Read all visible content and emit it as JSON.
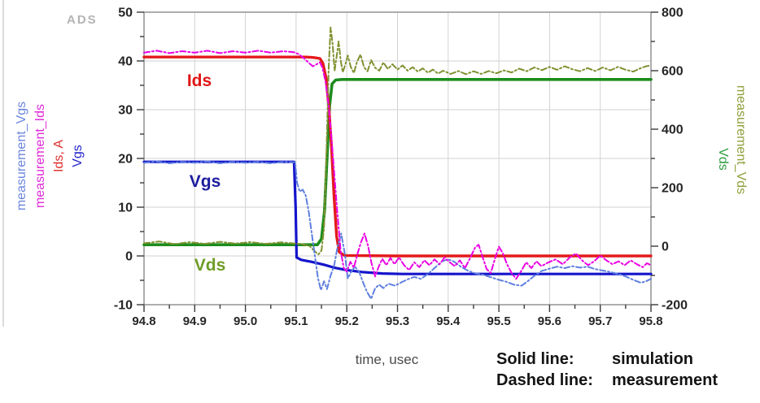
{
  "watermark": "ADS",
  "legend": {
    "solid_label": "Solid line:",
    "solid_value": "simulation",
    "dashed_label": "Dashed line:",
    "dashed_value": "measurement"
  },
  "chart_data": {
    "type": "line",
    "title": "",
    "xlabel": "time, usec",
    "grid": true,
    "x_range": [
      94.8,
      95.8
    ],
    "x_tick_labels": [
      "94.8",
      "94.9",
      "95.0",
      "95.1",
      "95.2",
      "95.3",
      "95.4",
      "95.5",
      "95.6",
      "95.7",
      "95.8"
    ],
    "left_axis": {
      "range": [
        -10,
        50
      ],
      "ticks": [
        50,
        40,
        30,
        20,
        10,
        0,
        -10
      ],
      "labels": [
        {
          "text": "measurement_Vgs",
          "color": "#6b86dd"
        },
        {
          "text": "measurement_Ids",
          "color": "#e02ad8"
        },
        {
          "text": "Ids, A",
          "color": "#e03030"
        },
        {
          "text": "Vgs",
          "color": "#2626cc"
        }
      ]
    },
    "right_axis": {
      "range": [
        -200,
        800
      ],
      "ticks": [
        800,
        600,
        400,
        200,
        0,
        -200
      ],
      "labels": [
        {
          "text": "Vds",
          "color": "#2f9e40"
        },
        {
          "text": "measurement_Vds",
          "color": "#8fa03c"
        }
      ]
    },
    "inline_labels": [
      {
        "text": "Ids",
        "color": "#e01515"
      },
      {
        "text": "Vgs",
        "color": "#1c1c9e"
      },
      {
        "text": "Vds",
        "color": "#6f9c28"
      }
    ],
    "series": [
      {
        "name": "Vds_simulation",
        "axis": "right",
        "line_style": "solid",
        "color": "#1d8c1d",
        "width": 3.6,
        "points": [
          [
            94.8,
            5
          ],
          [
            95.142,
            5
          ],
          [
            95.15,
            25
          ],
          [
            95.156,
            120
          ],
          [
            95.161,
            300
          ],
          [
            95.166,
            480
          ],
          [
            95.171,
            555
          ],
          [
            95.178,
            568
          ],
          [
            95.19,
            570
          ],
          [
            95.8,
            570
          ]
        ]
      },
      {
        "name": "Vgs_simulation",
        "axis": "left",
        "line_style": "solid",
        "color": "#1414cc",
        "width": 3.2,
        "points": [
          [
            94.8,
            19.3
          ],
          [
            95.096,
            19.3
          ],
          [
            95.099,
            10
          ],
          [
            95.101,
            -0.3
          ],
          [
            95.11,
            -0.8
          ],
          [
            95.13,
            -1.2
          ],
          [
            95.155,
            -1.8
          ],
          [
            95.175,
            -2.4
          ],
          [
            95.2,
            -2.9
          ],
          [
            95.23,
            -3.3
          ],
          [
            95.27,
            -3.6
          ],
          [
            95.31,
            -3.7
          ],
          [
            95.8,
            -3.7
          ]
        ]
      },
      {
        "name": "Ids_simulation",
        "axis": "left",
        "line_style": "solid",
        "color": "#e31a1a",
        "width": 3.4,
        "points": [
          [
            94.8,
            40.8
          ],
          [
            95.12,
            40.8
          ],
          [
            95.135,
            40.7
          ],
          [
            95.147,
            40.5
          ],
          [
            95.153,
            39.5
          ],
          [
            95.159,
            36.5
          ],
          [
            95.165,
            30
          ],
          [
            95.17,
            22
          ],
          [
            95.175,
            12
          ],
          [
            95.18,
            4
          ],
          [
            95.185,
            0.8
          ],
          [
            95.195,
            0.1
          ],
          [
            95.3,
            0
          ],
          [
            95.8,
            0
          ]
        ]
      },
      {
        "name": "Vds_measurement",
        "axis": "right",
        "line_style": "dashed",
        "color": "#7f9130",
        "width": 2,
        "points": [
          [
            94.8,
            10
          ],
          [
            94.83,
            16
          ],
          [
            94.86,
            7
          ],
          [
            94.89,
            14
          ],
          [
            94.92,
            8
          ],
          [
            94.95,
            15
          ],
          [
            94.98,
            9
          ],
          [
            95.01,
            14
          ],
          [
            95.04,
            8
          ],
          [
            95.07,
            13
          ],
          [
            95.1,
            9
          ],
          [
            95.115,
            6
          ],
          [
            95.127,
            0
          ],
          [
            95.137,
            -18
          ],
          [
            95.144,
            -28
          ],
          [
            95.15,
            -15
          ],
          [
            95.155,
            60
          ],
          [
            95.16,
            330
          ],
          [
            95.164,
            600
          ],
          [
            95.168,
            748
          ],
          [
            95.172,
            690
          ],
          [
            95.176,
            600
          ],
          [
            95.18,
            648
          ],
          [
            95.184,
            700
          ],
          [
            95.188,
            635
          ],
          [
            95.192,
            595
          ],
          [
            95.197,
            620
          ],
          [
            95.202,
            652
          ],
          [
            95.208,
            612
          ],
          [
            95.214,
            592
          ],
          [
            95.22,
            630
          ],
          [
            95.227,
            655
          ],
          [
            95.234,
            612
          ],
          [
            95.241,
            598
          ],
          [
            95.248,
            636
          ],
          [
            95.256,
            610
          ],
          [
            95.264,
            600
          ],
          [
            95.272,
            628
          ],
          [
            95.281,
            606
          ],
          [
            95.29,
            622
          ],
          [
            95.3,
            604
          ],
          [
            95.31,
            618
          ],
          [
            95.32,
            600
          ],
          [
            95.33,
            612
          ],
          [
            95.34,
            597
          ],
          [
            95.35,
            608
          ],
          [
            95.36,
            593
          ],
          [
            95.37,
            604
          ],
          [
            95.38,
            590
          ],
          [
            95.39,
            600
          ],
          [
            95.405,
            589
          ],
          [
            95.42,
            599
          ],
          [
            95.435,
            588
          ],
          [
            95.45,
            598
          ],
          [
            95.465,
            589
          ],
          [
            95.48,
            599
          ],
          [
            95.495,
            591
          ],
          [
            95.51,
            601
          ],
          [
            95.525,
            594
          ],
          [
            95.54,
            607
          ],
          [
            95.555,
            598
          ],
          [
            95.57,
            611
          ],
          [
            95.585,
            602
          ],
          [
            95.6,
            613
          ],
          [
            95.615,
            603
          ],
          [
            95.63,
            615
          ],
          [
            95.645,
            605
          ],
          [
            95.66,
            598
          ],
          [
            95.675,
            609
          ],
          [
            95.69,
            599
          ],
          [
            95.705,
            611
          ],
          [
            95.72,
            601
          ],
          [
            95.735,
            613
          ],
          [
            95.75,
            603
          ],
          [
            95.765,
            597
          ],
          [
            95.78,
            609
          ],
          [
            95.79,
            615
          ],
          [
            95.8,
            618
          ]
        ]
      },
      {
        "name": "Vgs_measurement",
        "axis": "left",
        "line_style": "dashed",
        "color": "#5f7fdf",
        "width": 2,
        "points": [
          [
            94.8,
            19.1
          ],
          [
            94.825,
            19.4
          ],
          [
            94.85,
            19.0
          ],
          [
            94.875,
            19.3
          ],
          [
            94.9,
            19.1
          ],
          [
            94.925,
            19.4
          ],
          [
            94.95,
            19.0
          ],
          [
            94.975,
            19.3
          ],
          [
            95.0,
            19.1
          ],
          [
            95.025,
            19.3
          ],
          [
            95.05,
            19.0
          ],
          [
            95.075,
            19.3
          ],
          [
            95.098,
            19.2
          ],
          [
            95.102,
            15.0
          ],
          [
            95.107,
            13.2
          ],
          [
            95.113,
            13.6
          ],
          [
            95.119,
            12.4
          ],
          [
            95.125,
            9.0
          ],
          [
            95.131,
            4.5
          ],
          [
            95.137,
            0.0
          ],
          [
            95.143,
            -4.5
          ],
          [
            95.149,
            -7.0
          ],
          [
            95.155,
            -5.2
          ],
          [
            95.161,
            -6.8
          ],
          [
            95.168,
            -4.0
          ],
          [
            95.175,
            -2.0
          ],
          [
            95.182,
            2.0
          ],
          [
            95.189,
            4.6
          ],
          [
            95.196,
            0.5
          ],
          [
            95.202,
            -4.6
          ],
          [
            95.209,
            -3.2
          ],
          [
            95.216,
            -2.2
          ],
          [
            95.224,
            -3.2
          ],
          [
            95.232,
            -5.4
          ],
          [
            95.24,
            -7.4
          ],
          [
            95.248,
            -8.8
          ],
          [
            95.256,
            -6.6
          ],
          [
            95.264,
            -5.9
          ],
          [
            95.272,
            -6.6
          ],
          [
            95.282,
            -5.7
          ],
          [
            95.295,
            -6.1
          ],
          [
            95.308,
            -5.4
          ],
          [
            95.32,
            -4.8
          ],
          [
            95.333,
            -4.3
          ],
          [
            95.346,
            -4.7
          ],
          [
            95.36,
            -3.7
          ],
          [
            95.374,
            -2.4
          ],
          [
            95.388,
            -1.1
          ],
          [
            95.4,
            -0.7
          ],
          [
            95.412,
            -1.2
          ],
          [
            95.425,
            -2.2
          ],
          [
            95.44,
            -3.1
          ],
          [
            95.455,
            -3.6
          ],
          [
            95.47,
            -3.9
          ],
          [
            95.485,
            -4.4
          ],
          [
            95.5,
            -4.9
          ],
          [
            95.515,
            -5.3
          ],
          [
            95.53,
            -5.9
          ],
          [
            95.545,
            -6.1
          ],
          [
            95.558,
            -5.1
          ],
          [
            95.571,
            -4.0
          ],
          [
            95.584,
            -3.1
          ],
          [
            95.6,
            -2.6
          ],
          [
            95.615,
            -2.2
          ],
          [
            95.63,
            -2.5
          ],
          [
            95.645,
            -2.1
          ],
          [
            95.66,
            -2.4
          ],
          [
            95.675,
            -2.2
          ],
          [
            95.69,
            -2.7
          ],
          [
            95.705,
            -3.0
          ],
          [
            95.72,
            -3.3
          ],
          [
            95.735,
            -3.7
          ],
          [
            95.75,
            -4.2
          ],
          [
            95.765,
            -4.9
          ],
          [
            95.78,
            -5.5
          ],
          [
            95.79,
            -5.2
          ],
          [
            95.8,
            -4.7
          ]
        ]
      },
      {
        "name": "Ids_measurement",
        "axis": "left",
        "line_style": "dashed",
        "color": "#ea00e4",
        "width": 2,
        "points": [
          [
            94.8,
            41.7
          ],
          [
            94.825,
            42.1
          ],
          [
            94.85,
            41.6
          ],
          [
            94.875,
            42.0
          ],
          [
            94.9,
            41.7
          ],
          [
            94.925,
            42.1
          ],
          [
            94.95,
            41.6
          ],
          [
            94.975,
            42.0
          ],
          [
            95.0,
            41.7
          ],
          [
            95.025,
            42.1
          ],
          [
            95.05,
            41.7
          ],
          [
            95.075,
            42.0
          ],
          [
            95.095,
            41.8
          ],
          [
            95.105,
            41.4
          ],
          [
            95.115,
            40.6
          ],
          [
            95.125,
            39.6
          ],
          [
            95.133,
            38.9
          ],
          [
            95.14,
            39.3
          ],
          [
            95.147,
            39.7
          ],
          [
            95.152,
            38.6
          ],
          [
            95.158,
            35.8
          ],
          [
            95.164,
            31
          ],
          [
            95.17,
            24
          ],
          [
            95.176,
            16
          ],
          [
            95.182,
            8
          ],
          [
            95.188,
            1
          ],
          [
            95.194,
            -2.5
          ],
          [
            95.2,
            -3.2
          ],
          [
            95.207,
            -1.2
          ],
          [
            95.214,
            -2.4
          ],
          [
            95.221,
            0.4
          ],
          [
            95.228,
            2.8
          ],
          [
            95.235,
            4.6
          ],
          [
            95.242,
            2
          ],
          [
            95.249,
            -1.6
          ],
          [
            95.256,
            -4.2
          ],
          [
            95.263,
            -2.2
          ],
          [
            95.27,
            -0.6
          ],
          [
            95.278,
            -1.9
          ],
          [
            95.286,
            -0.4
          ],
          [
            95.294,
            -1.7
          ],
          [
            95.303,
            -0.3
          ],
          [
            95.313,
            -1.9
          ],
          [
            95.323,
            -2.9
          ],
          [
            95.333,
            -1.3
          ],
          [
            95.343,
            -2.3
          ],
          [
            95.353,
            -0.9
          ],
          [
            95.363,
            -1.9
          ],
          [
            95.373,
            -0.7
          ],
          [
            95.383,
            -1.7
          ],
          [
            95.393,
            -0.3
          ],
          [
            95.403,
            -1.3
          ],
          [
            95.413,
            -2.1
          ],
          [
            95.423,
            -0.9
          ],
          [
            95.433,
            -2.5
          ],
          [
            95.443,
            -0.5
          ],
          [
            95.453,
            1.7
          ],
          [
            95.46,
            2.3
          ],
          [
            95.468,
            -0.3
          ],
          [
            95.476,
            -2.7
          ],
          [
            95.484,
            -3.5
          ],
          [
            95.492,
            -0.7
          ],
          [
            95.5,
            1.9
          ],
          [
            95.508,
            0.5
          ],
          [
            95.516,
            -1.7
          ],
          [
            95.525,
            -3.5
          ],
          [
            95.534,
            -4.7
          ],
          [
            95.544,
            -3.1
          ],
          [
            95.554,
            -1.3
          ],
          [
            95.564,
            -2.5
          ],
          [
            95.574,
            -1.1
          ],
          [
            95.584,
            -2.1
          ],
          [
            95.598,
            -1.3
          ],
          [
            95.612,
            -0.7
          ],
          [
            95.626,
            -1.7
          ],
          [
            95.64,
            -0.3
          ],
          [
            95.652,
            0.5
          ],
          [
            95.664,
            -0.9
          ],
          [
            95.676,
            -1.9
          ],
          [
            95.688,
            -1.1
          ],
          [
            95.7,
            0.1
          ],
          [
            95.712,
            -0.9
          ],
          [
            95.724,
            -1.7
          ],
          [
            95.736,
            -1.1
          ],
          [
            95.748,
            -1.9
          ],
          [
            95.76,
            -0.9
          ],
          [
            95.772,
            -1.7
          ],
          [
            95.784,
            -2.3
          ],
          [
            95.792,
            -1.5
          ],
          [
            95.8,
            -1.9
          ]
        ]
      }
    ]
  }
}
